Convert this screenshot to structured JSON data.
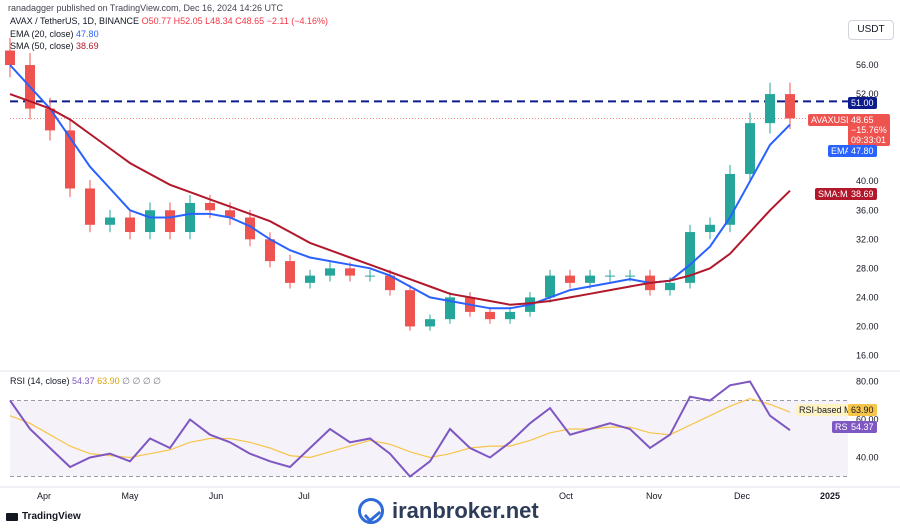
{
  "header": {
    "published_text": "ranadagger published on TradingView.com, Dec 16, 2024 14:26 UTC"
  },
  "legend": {
    "symbol": "AVAX / TetherUS, 1D, BINANCE",
    "ohlc": "O50.77 H52.05 L48.34 C48.65 −2.11 (−4.16%)",
    "ema": {
      "label": "EMA (20, close)",
      "value": "47.80"
    },
    "sma": {
      "label": "SMA (50, close)",
      "value": "38.69"
    },
    "rsi": {
      "label": "RSI (14, close)",
      "value1": "54.37",
      "value2": "63.90",
      "zeros": "∅ ∅ ∅ ∅"
    }
  },
  "currency": "USDT",
  "badges": {
    "level": "51.00",
    "symbol": "AVAXUSDT",
    "price": "48.65",
    "change": "−15.76%",
    "countdown": "09:33:01",
    "ema_tag": "EMA",
    "ema_value": "47.80",
    "sma_tag": "SMA:MA",
    "sma_value": "38.69",
    "rsi_ma_tag": "RSI-based MA",
    "rsi_ma_value": "63.90",
    "rsi_tag": "RSI",
    "rsi_value": "54.37"
  },
  "footer": {
    "tv_brand": "TradingView",
    "watermark": "iranbroker.net"
  },
  "colors": {
    "up": "#26a69a",
    "down": "#ef5350",
    "ema": "#2962ff",
    "sma": "#b2182b",
    "rsi": "#7e57c2",
    "rsi_ma": "#f7c548",
    "level": "#0c1c8c"
  },
  "chart_data": [
    {
      "type": "candlestick",
      "title": "AVAX / TetherUS, 1D, BINANCE",
      "ylim": [
        14,
        60
      ],
      "y_ticks": [
        "56.00",
        "52.00",
        "40.00",
        "36.00",
        "32.00",
        "28.00",
        "24.00",
        "20.00",
        "16.00"
      ],
      "x_ticks": [
        "Apr",
        "May",
        "Jun",
        "Jul",
        "Oct",
        "Nov",
        "Dec",
        "2025"
      ],
      "horizontal_level": 51.0,
      "last_price": 48.65,
      "x_dates": [
        "2024-03-20",
        "2024-03-27",
        "2024-04-03",
        "2024-04-10",
        "2024-04-17",
        "2024-04-24",
        "2024-05-01",
        "2024-05-08",
        "2024-05-15",
        "2024-05-22",
        "2024-05-29",
        "2024-06-05",
        "2024-06-12",
        "2024-06-19",
        "2024-06-26",
        "2024-07-03",
        "2024-07-10",
        "2024-07-17",
        "2024-07-24",
        "2024-07-31",
        "2024-08-07",
        "2024-08-14",
        "2024-08-21",
        "2024-08-28",
        "2024-09-04",
        "2024-09-11",
        "2024-09-18",
        "2024-09-25",
        "2024-10-02",
        "2024-10-09",
        "2024-10-16",
        "2024-10-23",
        "2024-10-30",
        "2024-11-06",
        "2024-11-13",
        "2024-11-20",
        "2024-11-27",
        "2024-12-04",
        "2024-12-11",
        "2024-12-16"
      ],
      "series": [
        {
          "name": "AVAX / TetherUS",
          "close": [
            56,
            50,
            47,
            39,
            34,
            35,
            33,
            36,
            33,
            37,
            36,
            35,
            32,
            29,
            26,
            27,
            28,
            27,
            27,
            25,
            20,
            21,
            24,
            22,
            21,
            22,
            24,
            27,
            26,
            27,
            27,
            27,
            25,
            26,
            33,
            34,
            41,
            48,
            52,
            48.65
          ]
        },
        {
          "name": "EMA",
          "values": [
            56,
            53,
            50,
            46,
            42,
            39,
            36,
            35,
            35,
            35.5,
            35.5,
            35,
            33.8,
            32,
            30.5,
            29.5,
            29,
            28.5,
            28,
            27,
            25.5,
            24,
            23.5,
            23,
            22.5,
            22.5,
            23,
            24,
            25,
            25.5,
            26,
            26.5,
            26,
            26.3,
            28.5,
            31,
            35,
            40,
            45,
            47.8
          ]
        },
        {
          "name": "SMA:MA",
          "values": [
            52,
            51,
            50,
            48.5,
            46.5,
            44.5,
            42.5,
            41,
            39.5,
            38.5,
            37.5,
            36.5,
            35.5,
            34.5,
            33,
            31.5,
            30.5,
            29.5,
            28.5,
            27.5,
            26.5,
            25.5,
            24.5,
            24,
            23.5,
            23,
            23.2,
            23.5,
            24,
            24.5,
            25,
            25.5,
            26,
            26.3,
            27,
            28,
            30,
            33,
            36,
            38.69
          ]
        }
      ]
    },
    {
      "type": "line",
      "title": "RSI (14, close)",
      "ylim": [
        25,
        85
      ],
      "y_ticks": [
        "80.00",
        "60.00",
        "40.00"
      ],
      "band": [
        30,
        70
      ],
      "series": [
        {
          "name": "RSI",
          "values": [
            70,
            55,
            45,
            35,
            40,
            42,
            38,
            50,
            45,
            60,
            52,
            48,
            42,
            38,
            35,
            45,
            55,
            48,
            50,
            42,
            30,
            38,
            55,
            45,
            40,
            48,
            58,
            66,
            52,
            55,
            58,
            55,
            45,
            52,
            72,
            70,
            78,
            80,
            62,
            54.37
          ]
        },
        {
          "name": "RSI-based MA",
          "values": [
            62,
            58,
            52,
            46,
            42,
            41,
            40,
            42,
            44,
            48,
            50,
            50,
            48,
            45,
            41,
            40,
            43,
            46,
            49,
            47,
            43,
            40,
            42,
            45,
            46,
            46,
            49,
            53,
            55,
            55,
            56,
            56,
            53,
            52,
            57,
            62,
            67,
            71,
            68,
            63.9
          ]
        }
      ]
    }
  ]
}
